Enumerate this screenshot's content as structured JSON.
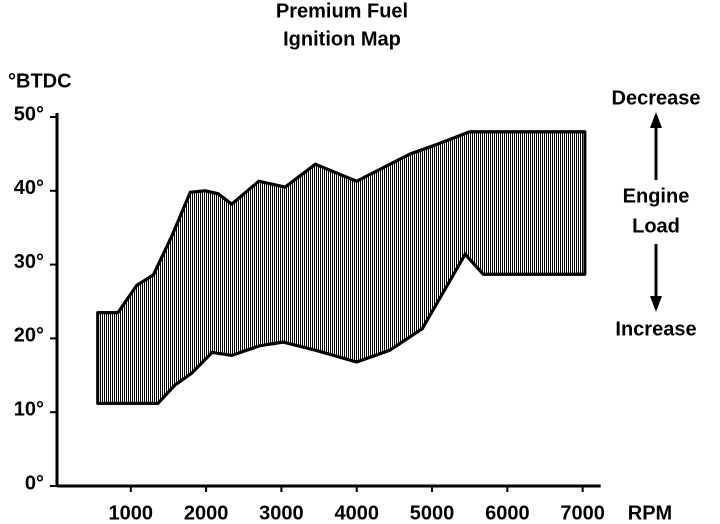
{
  "chart_data": {
    "type": "range-area",
    "title": [
      "Premium Fuel",
      "Ignition Map"
    ],
    "y_label": "°BTDC",
    "x_label": "RPM",
    "annotation": {
      "top": "Decrease",
      "middle": [
        "Engine",
        "Load"
      ],
      "bottom": "Increase"
    },
    "xlim": [
      0,
      7200
    ],
    "ylim": [
      0,
      50
    ],
    "xticks": [
      1000,
      2000,
      3000,
      4000,
      5000,
      6000,
      7000
    ],
    "yticks": [
      {
        "value": 0,
        "label": "0°"
      },
      {
        "value": 10,
        "label": "10°"
      },
      {
        "value": 20,
        "label": "20°"
      },
      {
        "value": 30,
        "label": "30°"
      },
      {
        "value": 40,
        "label": "40°"
      },
      {
        "value": 50,
        "label": "50°"
      }
    ],
    "upper": {
      "x": [
        560,
        830,
        1080,
        1300,
        1550,
        1790,
        1990,
        2160,
        2340,
        2700,
        3050,
        3450,
        4000,
        4710,
        5070,
        5500,
        7030
      ],
      "values": [
        23.5,
        23.5,
        27.2,
        28.6,
        34,
        39.8,
        40,
        39.6,
        38.2,
        41.3,
        40.5,
        43.6,
        41.3,
        45,
        46.3,
        48,
        48
      ]
    },
    "lower": {
      "x": [
        560,
        1360,
        1590,
        1810,
        2080,
        2340,
        2710,
        3020,
        3450,
        4000,
        4440,
        4870,
        5440,
        5680,
        7030
      ],
      "values": [
        11.2,
        11.2,
        13.7,
        15.3,
        18.1,
        17.7,
        19,
        19.5,
        18.4,
        16.8,
        18.4,
        21.3,
        31.4,
        28.7,
        28.7
      ]
    },
    "color": "#000000"
  }
}
